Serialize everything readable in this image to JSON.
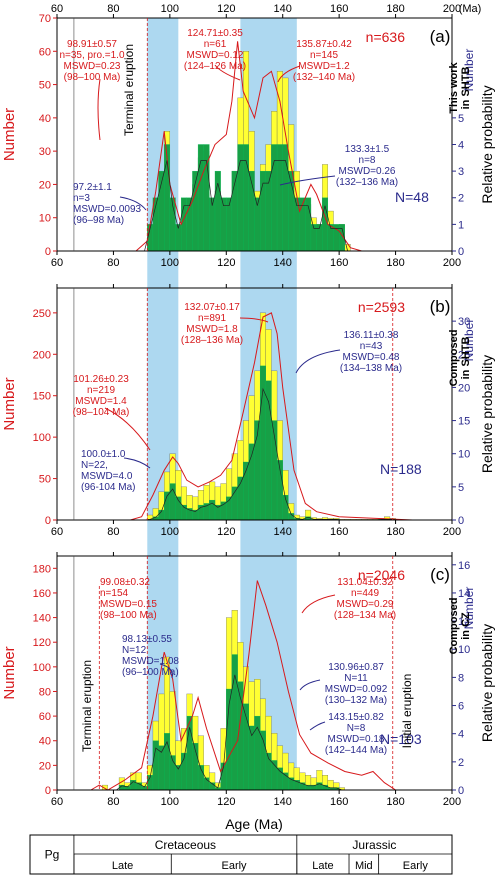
{
  "figure": {
    "x_axis": {
      "label": "Age (Ma)",
      "ticks": [
        60,
        80,
        100,
        120,
        140,
        160,
        180,
        200
      ],
      "top_unit": "(Ma)",
      "range": [
        60,
        200
      ]
    },
    "highlight_bands": [
      [
        92,
        103
      ],
      [
        125,
        145
      ]
    ],
    "timescale": {
      "periods": [
        {
          "label": "Pg",
          "from": 60,
          "to": 66
        },
        {
          "label": "Cretaceous",
          "from": 66,
          "to": 145
        },
        {
          "label": "Jurassic",
          "from": 145,
          "to": 200
        }
      ],
      "epochs": [
        {
          "label": "Late",
          "from": 66,
          "to": 100.5
        },
        {
          "label": "Early",
          "from": 100.5,
          "to": 145
        },
        {
          "label": "Late",
          "from": 145,
          "to": 163.5
        },
        {
          "label": "Mid",
          "from": 163.5,
          "to": 174
        },
        {
          "label": "Early",
          "from": 174,
          "to": 200
        }
      ]
    },
    "colors": {
      "red_axis": "#d7191c",
      "blue_axis": "#2b2b8c",
      "yellow_bar": "#ffff33",
      "green_bar": "#17a046",
      "band": "#add8f0",
      "red_curve": "#d7191c"
    }
  },
  "chart_data": [
    {
      "type": "bar",
      "panel_label": "(a)",
      "side_label": [
        "This work",
        "in SHTB"
      ],
      "n_label": "n=636",
      "N_label": "N=48",
      "ylabel_left": "Number",
      "ylabel_right": "Relative probability",
      "ylabel_right2": "Number",
      "ylim_left": [
        0,
        70
      ],
      "yticks_left": [
        0,
        10,
        20,
        30,
        40,
        50,
        60,
        70
      ],
      "ylim_right": [
        0,
        8.75
      ],
      "yticks_right": [
        0,
        1,
        2,
        3,
        4,
        5
      ],
      "x_start": 60,
      "bin_width": 2,
      "yellow_values": [
        0,
        0,
        0,
        0,
        0,
        0,
        0,
        0,
        0,
        0,
        0,
        0,
        0,
        0,
        0,
        0,
        3,
        12,
        22,
        36,
        8,
        4,
        7,
        4,
        20,
        28,
        30,
        12,
        18,
        14,
        12,
        24,
        46,
        60,
        36,
        18,
        26,
        32,
        42,
        54,
        52,
        38,
        24,
        12,
        14,
        10,
        8,
        26,
        12,
        6,
        8,
        2
      ],
      "green_values": [
        0,
        0,
        0,
        0,
        0,
        0,
        0,
        0,
        0,
        0,
        0,
        0,
        0,
        0,
        0,
        0,
        1,
        2,
        3,
        4,
        2,
        1,
        2,
        2,
        3,
        4,
        4,
        2,
        3,
        2,
        2,
        3,
        4,
        4,
        3,
        2,
        3,
        3,
        4,
        4,
        4,
        3,
        2,
        2,
        2,
        1,
        1,
        2,
        1,
        1,
        1,
        0
      ],
      "red_curve": [
        [
          88,
          0
        ],
        [
          92,
          3
        ],
        [
          95,
          18
        ],
        [
          98,
          36
        ],
        [
          100,
          20
        ],
        [
          104,
          8
        ],
        [
          108,
          15
        ],
        [
          112,
          24
        ],
        [
          116,
          32
        ],
        [
          120,
          35
        ],
        [
          122,
          45
        ],
        [
          124,
          63
        ],
        [
          126,
          48
        ],
        [
          130,
          40
        ],
        [
          133,
          52
        ],
        [
          136,
          54
        ],
        [
          139,
          45
        ],
        [
          142,
          30
        ],
        [
          146,
          12
        ],
        [
          150,
          20
        ],
        [
          152,
          17
        ],
        [
          156,
          8
        ],
        [
          160,
          6
        ],
        [
          164,
          1
        ],
        [
          168,
          0
        ]
      ],
      "annotations": [
        {
          "lines": [
            "98.91±0.57",
            "n=35, pro.=1.0",
            "MSWD=0.23",
            "(98–100 Ma)"
          ],
          "color": "red"
        },
        {
          "lines": [
            "124.71±0.35",
            "n=61",
            "MSWD=0.12",
            "(124–126 Ma)"
          ],
          "color": "red"
        },
        {
          "lines": [
            "135.87±0.42",
            "n=145",
            "MSWD=1.2",
            "(132–140 Ma)"
          ],
          "color": "red"
        },
        {
          "lines": [
            "133.3±1.5",
            "n=8",
            "MSWD=0.26",
            "(132–136 Ma)"
          ],
          "color": "blue"
        },
        {
          "lines": [
            "97.2±1.1",
            "n=3",
            "MSWD=0.0093",
            "(96–98 Ma)"
          ],
          "color": "blue"
        }
      ],
      "vertical_labels": [
        "Terminal eruption"
      ]
    },
    {
      "type": "bar",
      "panel_label": "(b)",
      "side_label": [
        "Composed",
        "in SHTB"
      ],
      "n_label": "n=2593",
      "N_label": "N=188",
      "ylabel_left": "Number",
      "ylabel_right": "Relative probability",
      "ylabel_right2": "Number",
      "ylim_left": [
        0,
        280
      ],
      "yticks_left": [
        0,
        50,
        100,
        150,
        200,
        250
      ],
      "ylim_right": [
        0,
        35
      ],
      "yticks_right": [
        0,
        5,
        10,
        15,
        20,
        25,
        30
      ],
      "x_start": 60,
      "bin_width": 2,
      "yellow_values": [
        0,
        0,
        0,
        0,
        0,
        0,
        0,
        0,
        0,
        0,
        0,
        0,
        0,
        0,
        0,
        0,
        6,
        14,
        34,
        58,
        80,
        60,
        40,
        30,
        28,
        36,
        42,
        46,
        40,
        44,
        62,
        80,
        96,
        120,
        150,
        180,
        250,
        230,
        180,
        120,
        60,
        20,
        6,
        4,
        12,
        3,
        2,
        3,
        2,
        2,
        1,
        1,
        1,
        1,
        1,
        1,
        1,
        2,
        4,
        2,
        1
      ],
      "green_values": [
        0,
        0,
        0,
        0,
        0,
        0,
        0,
        0,
        0,
        0,
        0,
        0,
        0,
        0,
        0,
        0,
        1,
        4,
        12,
        34,
        44,
        28,
        18,
        14,
        12,
        18,
        20,
        24,
        18,
        22,
        28,
        40,
        52,
        70,
        92,
        120,
        186,
        168,
        120,
        72,
        30,
        8,
        2,
        1,
        4,
        1,
        1,
        1,
        1,
        1,
        0,
        0,
        0,
        0,
        0,
        0,
        0,
        1,
        1,
        1,
        0
      ],
      "red_curve": [
        [
          86,
          0
        ],
        [
          90,
          4
        ],
        [
          94,
          30
        ],
        [
          98,
          60
        ],
        [
          101,
          76
        ],
        [
          103,
          68
        ],
        [
          106,
          48
        ],
        [
          110,
          40
        ],
        [
          114,
          46
        ],
        [
          118,
          54
        ],
        [
          122,
          72
        ],
        [
          126,
          130
        ],
        [
          130,
          190
        ],
        [
          133,
          245
        ],
        [
          136,
          250
        ],
        [
          138,
          225
        ],
        [
          140,
          160
        ],
        [
          144,
          60
        ],
        [
          148,
          20
        ],
        [
          152,
          10
        ],
        [
          160,
          4
        ],
        [
          172,
          2
        ],
        [
          180,
          1
        ],
        [
          186,
          0
        ]
      ],
      "annotations": [
        {
          "lines": [
            "132.07±0.17",
            "n=891",
            "MSWD=1.8",
            "(128–136 Ma)"
          ],
          "color": "red"
        },
        {
          "lines": [
            "136.11±0.38",
            "n=43",
            "MSWD=0.48",
            "(134–138 Ma)"
          ],
          "color": "blue"
        },
        {
          "lines": [
            "101.26±0.23",
            "n=219",
            "MSWD=1.4",
            "(98–104 Ma)"
          ],
          "color": "red"
        },
        {
          "lines": [
            "100.0±1.0",
            "N=22,",
            "MSWD=4.0",
            "(96-104 Ma)"
          ],
          "color": "blue"
        }
      ],
      "vertical_labels": []
    },
    {
      "type": "bar",
      "panel_label": "(c)",
      "side_label": [
        "Composed",
        "in CZ"
      ],
      "n_label": "n=2046",
      "N_label": "N=103",
      "ylabel_left": "Number",
      "ylabel_right": "Relative probability",
      "ylabel_right2": "Number",
      "ylim_left": [
        0,
        190
      ],
      "yticks_left": [
        0,
        20,
        40,
        60,
        80,
        100,
        120,
        140,
        160,
        180
      ],
      "ylim_right": [
        0,
        16.625
      ],
      "yticks_right": [
        0,
        2,
        4,
        6,
        8,
        10,
        12,
        14,
        16
      ],
      "x_start": 60,
      "bin_width": 2,
      "yellow_values": [
        0,
        0,
        0,
        0,
        0,
        0,
        0,
        0,
        4,
        0,
        0,
        10,
        6,
        14,
        14,
        6,
        20,
        56,
        78,
        108,
        80,
        40,
        50,
        78,
        60,
        44,
        20,
        14,
        6,
        50,
        140,
        146,
        120,
        100,
        88,
        90,
        74,
        60,
        46,
        36,
        30,
        22,
        18,
        14,
        12,
        10,
        16,
        12,
        8,
        6,
        2
      ],
      "green_values": [
        0,
        0,
        0,
        0,
        0,
        0,
        0,
        0,
        0,
        0,
        0,
        4,
        3,
        8,
        6,
        3,
        12,
        40,
        36,
        46,
        28,
        20,
        30,
        60,
        38,
        20,
        10,
        6,
        2,
        22,
        82,
        110,
        88,
        70,
        52,
        60,
        48,
        30,
        24,
        18,
        14,
        10,
        8,
        6,
        4,
        4,
        6,
        4,
        2,
        2,
        0
      ],
      "red_curve": [
        [
          72,
          0
        ],
        [
          75,
          4
        ],
        [
          78,
          0
        ],
        [
          84,
          8
        ],
        [
          90,
          18
        ],
        [
          94,
          60
        ],
        [
          98,
          112
        ],
        [
          101,
          90
        ],
        [
          104,
          40
        ],
        [
          108,
          60
        ],
        [
          110,
          75
        ],
        [
          113,
          50
        ],
        [
          118,
          15
        ],
        [
          124,
          40
        ],
        [
          128,
          110
        ],
        [
          131,
          170
        ],
        [
          134,
          150
        ],
        [
          138,
          120
        ],
        [
          142,
          80
        ],
        [
          146,
          45
        ],
        [
          150,
          30
        ],
        [
          156,
          22
        ],
        [
          162,
          15
        ],
        [
          168,
          12
        ],
        [
          172,
          15
        ],
        [
          176,
          6
        ],
        [
          180,
          0
        ]
      ],
      "annotations": [
        {
          "lines": [
            "99.08±0.32",
            "n=154",
            "MSWD=0.15",
            "(98–100 Ma)"
          ],
          "color": "red"
        },
        {
          "lines": [
            "131.04±0.32",
            "n=449",
            "MSWD=0.29",
            "(128–134 Ma)"
          ],
          "color": "red"
        },
        {
          "lines": [
            "98.13±0.55",
            "N=12",
            "MSWD=1.08",
            "(96–100 Ma)"
          ],
          "color": "blue"
        },
        {
          "lines": [
            "130.96±0.87",
            "N=11",
            "MSWD=0.092",
            "(130–132 Ma)"
          ],
          "color": "blue"
        },
        {
          "lines": [
            "143.15±0.82",
            "N=8",
            "MSWD=0.18",
            "(142–144 Ma)"
          ],
          "color": "blue"
        }
      ],
      "vertical_labels": [
        "Terminal eruption",
        "Initial eruption"
      ]
    }
  ]
}
